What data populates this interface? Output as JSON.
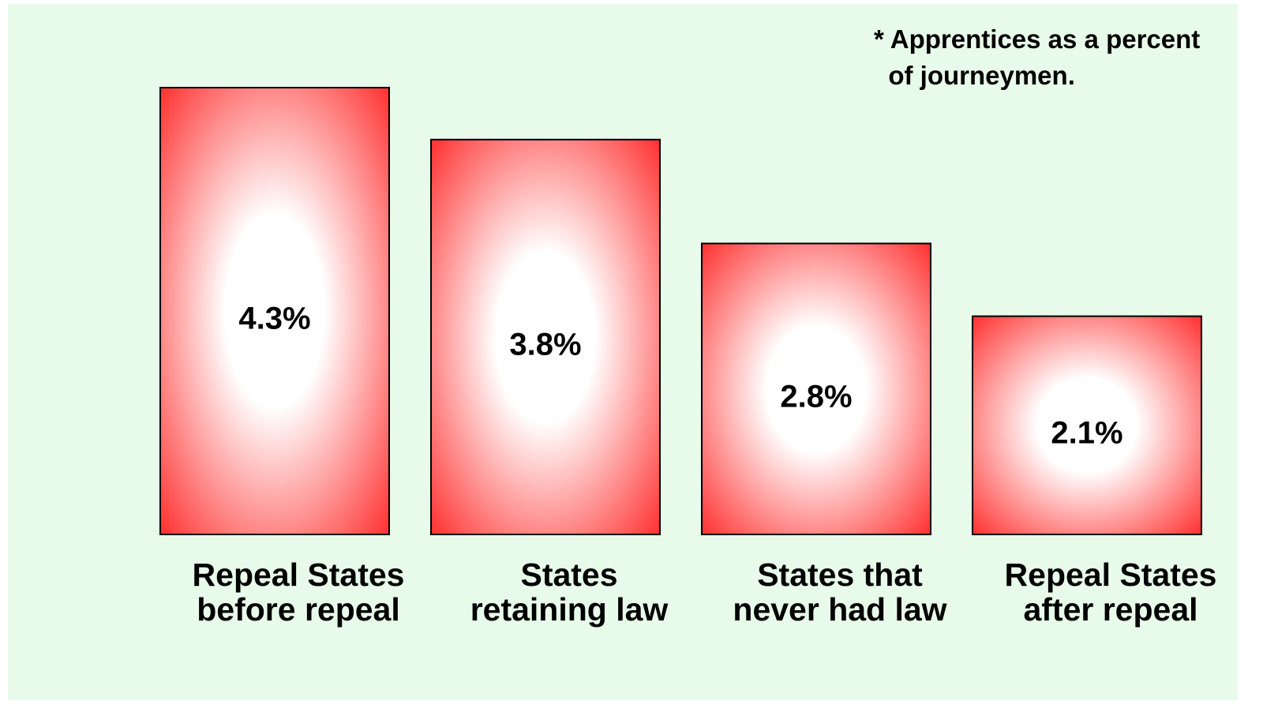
{
  "chart_data": {
    "type": "bar",
    "annotation": "* Apprentices as a percent\n  of journeymen.",
    "categories": [
      "Repeal States\nbefore repeal",
      "States\nretaining law",
      "States that\nnever had law",
      "Repeal States\nafter repeal"
    ],
    "values": [
      4.3,
      3.8,
      2.8,
      2.1
    ],
    "value_labels": [
      "4.3%",
      "3.8%",
      "2.8%",
      "2.1%"
    ],
    "color": "#ff2a2a"
  }
}
